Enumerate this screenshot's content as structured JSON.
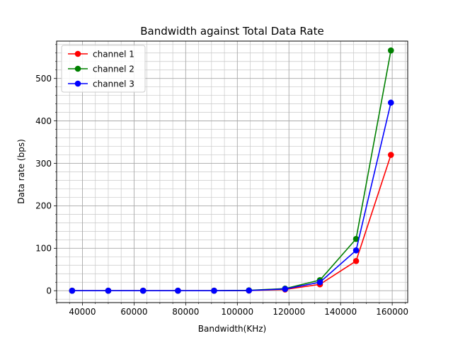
{
  "chart_data": {
    "type": "line",
    "title": "Bandwidth against Total Data Rate",
    "xlabel": "Bandwidth(KHz)",
    "ylabel": "Data rate (bps)",
    "xlim": [
      30000,
      166000
    ],
    "ylim": [
      -28,
      588
    ],
    "grid": true,
    "minor_grid": true,
    "legend": "top-left",
    "x": [
      36000,
      50000,
      63500,
      77000,
      91000,
      104500,
      118500,
      132000,
      146000,
      159500
    ],
    "x_ticks": [
      40000,
      60000,
      80000,
      100000,
      120000,
      140000,
      160000
    ],
    "y_ticks": [
      0,
      100,
      200,
      300,
      400,
      500
    ],
    "series": [
      {
        "name": "channel 1",
        "color": "#ff0000",
        "values": [
          0,
          0,
          0,
          0,
          0,
          0.5,
          3,
          15,
          70,
          320
        ]
      },
      {
        "name": "channel 2",
        "color": "#008000",
        "values": [
          0,
          0,
          0,
          0,
          0,
          1,
          5,
          25,
          122,
          566
        ]
      },
      {
        "name": "channel 3",
        "color": "#0000ff",
        "values": [
          0,
          0,
          0,
          0,
          0,
          0.5,
          4,
          20,
          95,
          443
        ]
      }
    ]
  }
}
